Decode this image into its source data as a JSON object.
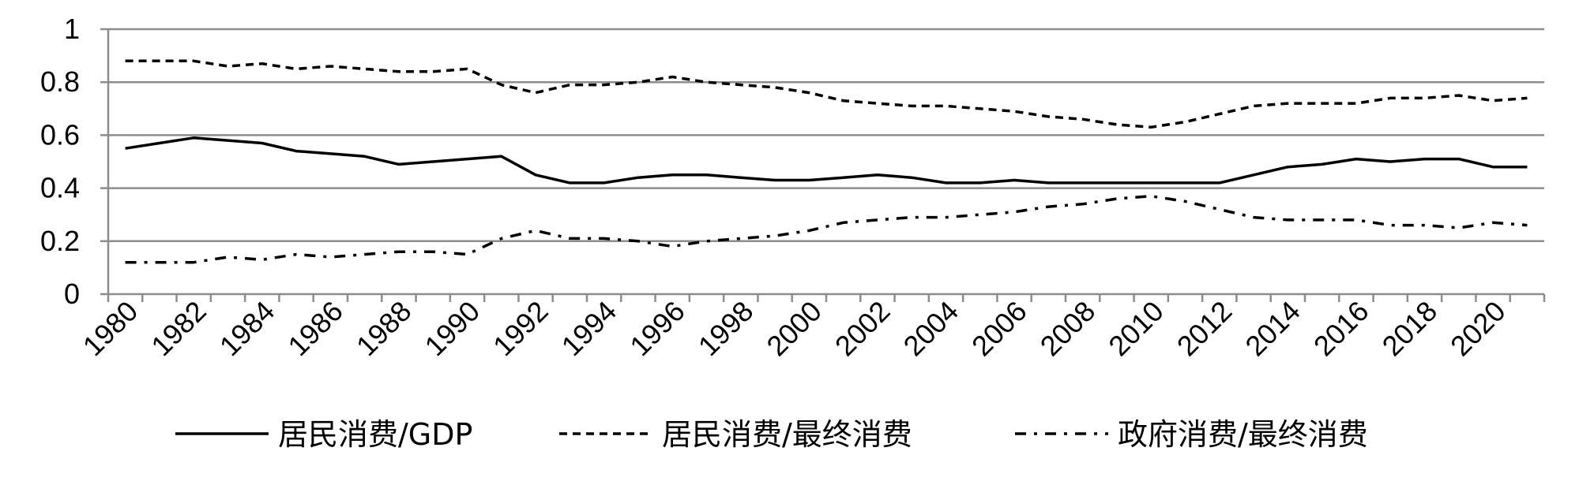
{
  "chart_data": {
    "type": "line",
    "x": [
      1980,
      1981,
      1982,
      1983,
      1984,
      1985,
      1986,
      1987,
      1988,
      1989,
      1990,
      1991,
      1992,
      1993,
      1994,
      1995,
      1996,
      1997,
      1998,
      1999,
      2000,
      2001,
      2002,
      2003,
      2004,
      2005,
      2006,
      2007,
      2008,
      2009,
      2010,
      2011,
      2012,
      2013,
      2014,
      2015,
      2016,
      2017,
      2018,
      2019,
      2020,
      2021
    ],
    "x_tick_labels": [
      "1980",
      "1982",
      "1984",
      "1986",
      "1988",
      "1990",
      "1992",
      "1994",
      "1996",
      "1998",
      "2000",
      "2002",
      "2004",
      "2006",
      "2008",
      "2010",
      "2012",
      "2014",
      "2016",
      "2018",
      "2020"
    ],
    "y_tick_labels": [
      "0",
      "0.2",
      "0.4",
      "0.6",
      "0.8",
      "1"
    ],
    "ylim": [
      0,
      1
    ],
    "grid": true,
    "legend_position": "bottom",
    "series": [
      {
        "name": "居民消费/GDP",
        "style": "solid",
        "values": [
          0.55,
          0.57,
          0.59,
          0.58,
          0.57,
          0.54,
          0.53,
          0.52,
          0.49,
          0.5,
          0.51,
          0.52,
          0.45,
          0.42,
          0.42,
          0.44,
          0.45,
          0.45,
          0.44,
          0.43,
          0.43,
          0.44,
          0.45,
          0.44,
          0.42,
          0.42,
          0.43,
          0.42,
          0.42,
          0.42,
          0.42,
          0.42,
          0.42,
          0.45,
          0.48,
          0.49,
          0.51,
          0.5,
          0.51,
          0.51,
          0.48,
          0.48
        ]
      },
      {
        "name": "居民消费/最终消费",
        "style": "dashed",
        "values": [
          0.88,
          0.88,
          0.88,
          0.86,
          0.87,
          0.85,
          0.86,
          0.85,
          0.84,
          0.84,
          0.85,
          0.79,
          0.76,
          0.79,
          0.79,
          0.8,
          0.82,
          0.8,
          0.79,
          0.78,
          0.76,
          0.73,
          0.72,
          0.71,
          0.71,
          0.7,
          0.69,
          0.67,
          0.66,
          0.64,
          0.63,
          0.65,
          0.68,
          0.71,
          0.72,
          0.72,
          0.72,
          0.74,
          0.74,
          0.75,
          0.73,
          0.74
        ]
      },
      {
        "name": "政府消费/最终消费",
        "style": "dashdot",
        "values": [
          0.12,
          0.12,
          0.12,
          0.14,
          0.13,
          0.15,
          0.14,
          0.15,
          0.16,
          0.16,
          0.15,
          0.21,
          0.24,
          0.21,
          0.21,
          0.2,
          0.18,
          0.2,
          0.21,
          0.22,
          0.24,
          0.27,
          0.28,
          0.29,
          0.29,
          0.3,
          0.31,
          0.33,
          0.34,
          0.36,
          0.37,
          0.35,
          0.32,
          0.29,
          0.28,
          0.28,
          0.28,
          0.26,
          0.26,
          0.25,
          0.27,
          0.26
        ]
      }
    ]
  }
}
